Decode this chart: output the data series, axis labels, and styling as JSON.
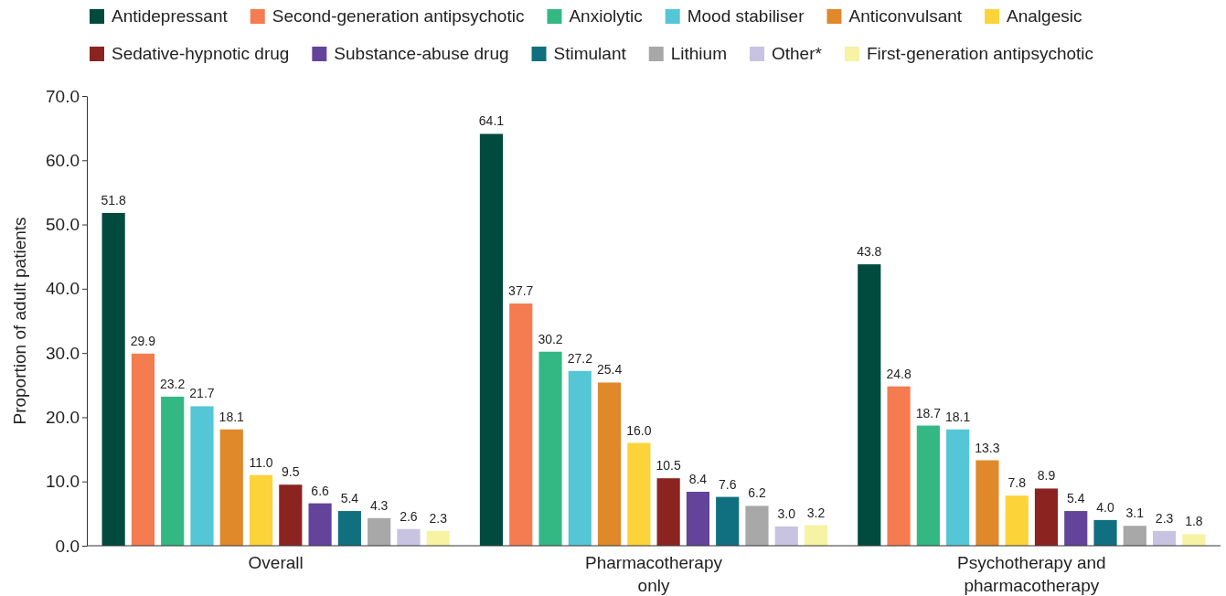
{
  "chart_data": {
    "type": "bar",
    "ylabel": "Proportion of adult patients",
    "categories": [
      "Overall",
      "Pharmacotherapy only",
      "Psychotherapy and pharmacotherapy"
    ],
    "series": [
      {
        "name": "Antidepressant",
        "color": "#004a3e",
        "values": [
          51.8,
          64.1,
          43.8
        ],
        "value_labels": [
          "51.8",
          "64.1",
          "43.8"
        ]
      },
      {
        "name": "Second-generation antipsychotic",
        "color": "#f47c50",
        "values": [
          29.9,
          37.7,
          24.8
        ],
        "value_labels": [
          "29.9",
          "37.7",
          "24.8"
        ]
      },
      {
        "name": "Anxiolytic",
        "color": "#34b883",
        "values": [
          23.2,
          30.2,
          18.7
        ],
        "value_labels": [
          "23.2",
          "30.2",
          "18.7"
        ]
      },
      {
        "name": "Mood stabiliser",
        "color": "#55c6d5",
        "values": [
          21.7,
          27.2,
          18.1
        ],
        "value_labels": [
          "21.7",
          "27.2",
          "18.1"
        ]
      },
      {
        "name": "Anticonvulsant",
        "color": "#e0892a",
        "values": [
          18.1,
          25.4,
          13.3
        ],
        "value_labels": [
          "18.1",
          "25.4",
          "13.3"
        ]
      },
      {
        "name": "Analgesic",
        "color": "#fdd33a",
        "values": [
          11,
          16,
          7.8
        ],
        "value_labels": [
          "11.0",
          "16.0",
          "7.8"
        ]
      },
      {
        "name": "Sedative-hypnotic drug",
        "color": "#8b2420",
        "values": [
          9.5,
          10.5,
          8.9
        ],
        "value_labels": [
          "9.5",
          "10.5",
          "8.9"
        ]
      },
      {
        "name": "Substance-abuse drug",
        "color": "#63449a",
        "values": [
          6.6,
          8.4,
          5.4
        ],
        "value_labels": [
          "6.6",
          "8.4",
          "5.4"
        ]
      },
      {
        "name": "Stimulant",
        "color": "#10707f",
        "values": [
          5.4,
          7.6,
          4
        ],
        "value_labels": [
          "5.4",
          "7.6",
          "4.0"
        ]
      },
      {
        "name": "Lithium",
        "color": "#a8a8a8",
        "values": [
          4.3,
          6.2,
          3.1
        ],
        "value_labels": [
          "4.3",
          "6.2",
          "3.1"
        ]
      },
      {
        "name": "Other*",
        "color": "#c8c3e0",
        "values": [
          2.6,
          3,
          2.3
        ],
        "value_labels": [
          "2.6",
          "3.0",
          "2.3"
        ]
      },
      {
        "name": "First-generation antipsychotic",
        "color": "#f6f3a4",
        "values": [
          2.3,
          3.2,
          1.8
        ],
        "value_labels": [
          "2.3",
          "3.2",
          "1.8"
        ]
      }
    ],
    "ylim": [
      0,
      70
    ],
    "yticks": [
      {
        "value": 0,
        "label": "0.0"
      },
      {
        "value": 10,
        "label": "10.0"
      },
      {
        "value": 20,
        "label": "20.0"
      },
      {
        "value": 30,
        "label": "30.0"
      },
      {
        "value": 40,
        "label": "40.0"
      },
      {
        "value": 50,
        "label": "50.0"
      },
      {
        "value": 60,
        "label": "60.0"
      },
      {
        "value": 70,
        "label": "70.0"
      }
    ],
    "legend": "top",
    "grid": false
  }
}
